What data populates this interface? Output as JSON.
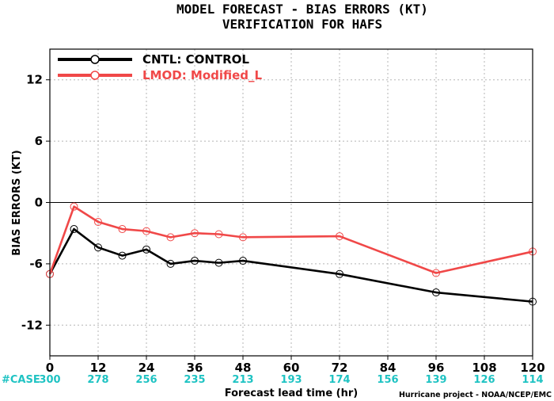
{
  "chart_data": {
    "type": "line",
    "title": "MODEL FORECAST - BIAS ERRORS (KT)",
    "subtitle": "VERIFICATION FOR HAFS",
    "xlabel": "Forecast lead time (hr)",
    "ylabel": "BIAS ERRORS (KT)",
    "xlim": [
      0,
      120
    ],
    "ylim": [
      -15,
      15
    ],
    "xticks": [
      0,
      12,
      24,
      36,
      48,
      60,
      72,
      84,
      96,
      108,
      120
    ],
    "yticks": [
      -12,
      -6,
      0,
      6,
      12
    ],
    "grid": true,
    "legend_position": "top-left",
    "x": [
      0,
      6,
      12,
      18,
      24,
      30,
      36,
      42,
      48,
      72,
      96,
      120
    ],
    "series": [
      {
        "name": "CNTL: CONTROL",
        "color": "#000000",
        "values": [
          -7.0,
          -2.6,
          -4.4,
          -5.2,
          -4.6,
          -6.0,
          -5.7,
          -5.9,
          -5.7,
          -7.0,
          -8.8,
          -9.7
        ]
      },
      {
        "name": "LMOD: Modified_L",
        "color": "#f04848",
        "values": [
          -7.0,
          -0.4,
          -1.9,
          -2.6,
          -2.8,
          -3.4,
          -3.0,
          -3.1,
          -3.4,
          -3.3,
          -6.9,
          -4.8
        ]
      }
    ],
    "cases_label": "#CASE",
    "cases": [
      "300",
      "278",
      "256",
      "235",
      "213",
      "193",
      "174",
      "156",
      "139",
      "126",
      "114"
    ],
    "credit": "Hurricane project - NOAA/NCEP/EMC"
  }
}
